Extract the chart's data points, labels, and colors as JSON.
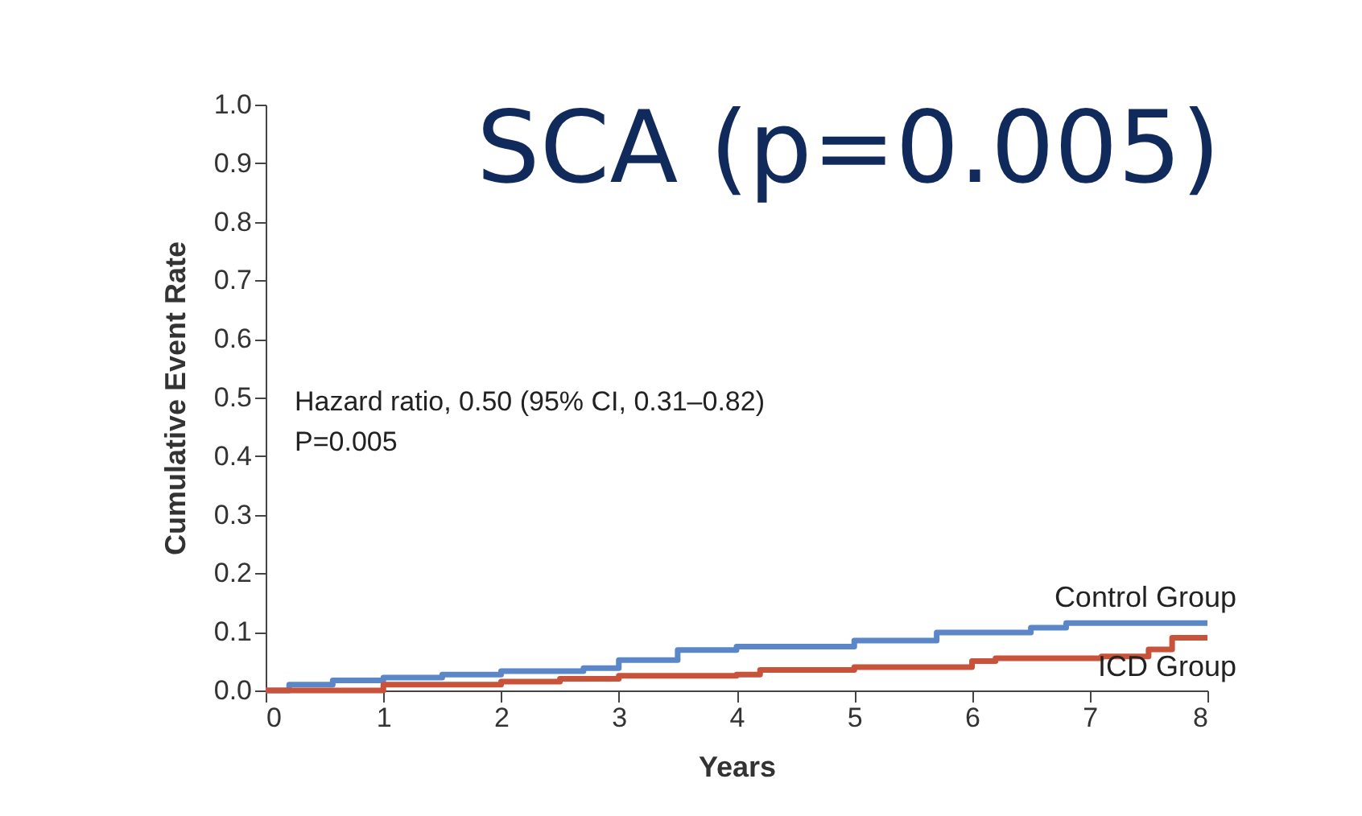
{
  "chart_data": {
    "type": "step",
    "title": "SCA (p=0.005)",
    "xlabel": "Years",
    "ylabel": "Cumulative Event Rate",
    "xlim": [
      0,
      8
    ],
    "xticks": [
      0,
      1,
      2,
      3,
      4,
      5,
      6,
      7,
      8
    ],
    "ylim": [
      0,
      1
    ],
    "yticks": [
      {
        "value": 0,
        "label": "0.0"
      },
      {
        "value": 0.1,
        "label": "0.1"
      },
      {
        "value": 0.2,
        "label": "0.2"
      },
      {
        "value": 0.3,
        "label": "0.3"
      },
      {
        "value": 0.4,
        "label": "0.4"
      },
      {
        "value": 0.5,
        "label": "0.5"
      },
      {
        "value": 0.6,
        "label": "0.6"
      },
      {
        "value": 0.7,
        "label": "0.7"
      },
      {
        "value": 0.8,
        "label": "0.8"
      },
      {
        "value": 0.9,
        "label": "0.9"
      },
      {
        "value": 1,
        "label": "1.0"
      }
    ],
    "grid": false,
    "series": [
      {
        "name": "Control Group",
        "color": "#5b87c9",
        "x": [
          0,
          0.2,
          0.57,
          1,
          1.5,
          2,
          2.7,
          3,
          3.5,
          4,
          5,
          5.7,
          6.5,
          6.8,
          8
        ],
        "values": [
          0,
          0.01,
          0.017,
          0.022,
          0.027,
          0.033,
          0.038,
          0.052,
          0.069,
          0.075,
          0.085,
          0.099,
          0.107,
          0.115,
          0.115
        ]
      },
      {
        "name": "ICD Group",
        "color": "#c9533a",
        "x": [
          0,
          1,
          2,
          2.5,
          3,
          4,
          4.2,
          5,
          6,
          6.2,
          7.1,
          7.5,
          7.7,
          8
        ],
        "values": [
          0,
          0.01,
          0.015,
          0.02,
          0.025,
          0.027,
          0.035,
          0.04,
          0.05,
          0.055,
          0.058,
          0.07,
          0.09,
          0.09
        ]
      }
    ],
    "annotations": [
      "Hazard ratio, 0.50 (95% CI, 0.31–0.82)",
      "P=0.005"
    ]
  }
}
